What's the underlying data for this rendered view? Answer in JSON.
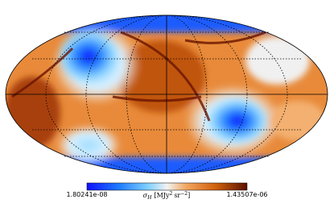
{
  "colorbar": {
    "min": "1.80241e-08",
    "max": "1.43507e-06",
    "label": {
      "symbol": "σ",
      "subscript": "H",
      "unit_open": "[MJy",
      "unit_exp": "2",
      "unit2": "sr",
      "unit2_exp": "−2",
      "unit_close": "]"
    }
  }
}
